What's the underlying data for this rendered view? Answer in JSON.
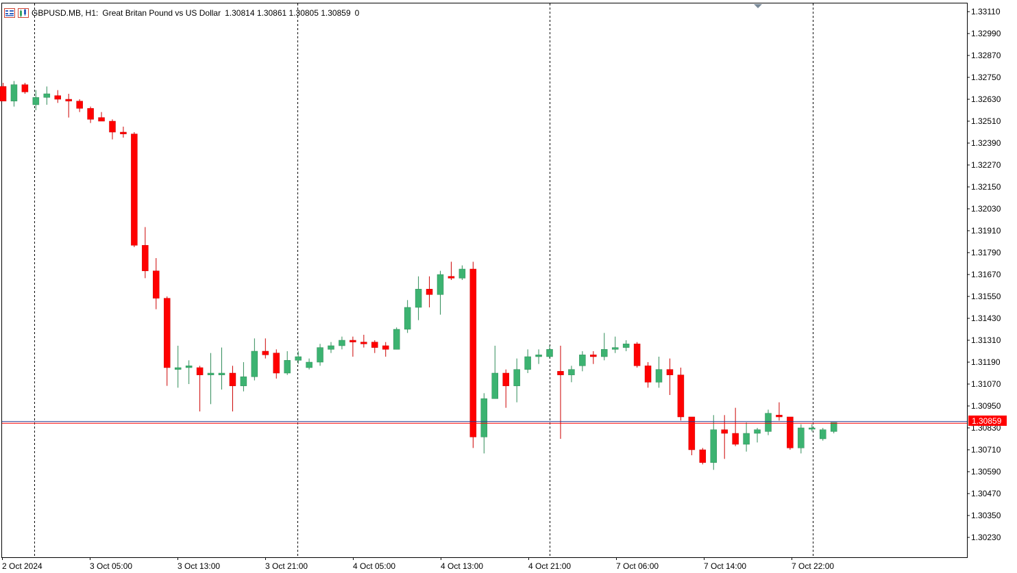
{
  "header": {
    "symbol": "GBPUSD.MB, H1:",
    "description": "Great Britan Pound vs US Dollar",
    "ohlc": "1.30814 1.30861 1.30805 1.30859",
    "extra": "0",
    "icons": [
      "chart-list-icon",
      "chart-properties-icon"
    ]
  },
  "colors": {
    "bull": "#3cb371",
    "bear": "#ff0000",
    "wick_bull": "#2e8b57",
    "wick_bear": "#cc0000",
    "bid_line": "#1f3a93",
    "ask_line": "#ff0000",
    "price_label_bg": "#ff0000",
    "grid_separator": "#000000"
  },
  "current_price_label": "1.30859",
  "chart_data": {
    "type": "candlestick",
    "symbol": "GBPUSD.MB",
    "timeframe": "H1",
    "y_ticks": [
      "1.33110",
      "1.32990",
      "1.32870",
      "1.32750",
      "1.32630",
      "1.32510",
      "1.32390",
      "1.32270",
      "1.32150",
      "1.32030",
      "1.31910",
      "1.31790",
      "1.31670",
      "1.31550",
      "1.31430",
      "1.31310",
      "1.31190",
      "1.31070",
      "1.30950",
      "1.30830",
      "1.30710",
      "1.30590",
      "1.30470",
      "1.30350",
      "1.30230"
    ],
    "x_ticks": [
      "2 Oct 2024",
      "3 Oct 05:00",
      "3 Oct 13:00",
      "3 Oct 21:00",
      "4 Oct 05:00",
      "4 Oct 13:00",
      "4 Oct 21:00",
      "7 Oct 06:00",
      "7 Oct 14:00",
      "7 Oct 22:00"
    ],
    "day_separators": [
      "3 Oct 2024",
      "4 Oct 2024",
      "7 Oct 2024",
      "8 Oct 2024"
    ],
    "ylim": [
      1.3018,
      1.3313
    ],
    "current_price": 1.30859,
    "candles": [
      {
        "o": 1.327,
        "h": 1.3272,
        "l": 1.3262,
        "c": 1.3262
      },
      {
        "o": 1.3262,
        "h": 1.3273,
        "l": 1.3259,
        "c": 1.3271
      },
      {
        "o": 1.3271,
        "h": 1.3272,
        "l": 1.3266,
        "c": 1.3267
      },
      {
        "o": 1.326,
        "h": 1.3268,
        "l": 1.3257,
        "c": 1.3264
      },
      {
        "o": 1.3264,
        "h": 1.327,
        "l": 1.326,
        "c": 1.3266
      },
      {
        "o": 1.3265,
        "h": 1.3268,
        "l": 1.3261,
        "c": 1.3263
      },
      {
        "o": 1.3263,
        "h": 1.3266,
        "l": 1.3253,
        "c": 1.3262
      },
      {
        "o": 1.3262,
        "h": 1.3263,
        "l": 1.3256,
        "c": 1.3258
      },
      {
        "o": 1.3258,
        "h": 1.3259,
        "l": 1.325,
        "c": 1.3252
      },
      {
        "o": 1.3253,
        "h": 1.3256,
        "l": 1.3251,
        "c": 1.3251
      },
      {
        "o": 1.3251,
        "h": 1.3252,
        "l": 1.3241,
        "c": 1.3245
      },
      {
        "o": 1.3245,
        "h": 1.3248,
        "l": 1.3242,
        "c": 1.3244
      },
      {
        "o": 1.3244,
        "h": 1.3245,
        "l": 1.3182,
        "c": 1.3183
      },
      {
        "o": 1.3183,
        "h": 1.3193,
        "l": 1.3165,
        "c": 1.3169
      },
      {
        "o": 1.3169,
        "h": 1.3176,
        "l": 1.3148,
        "c": 1.3154
      },
      {
        "o": 1.3154,
        "h": 1.3155,
        "l": 1.3106,
        "c": 1.3116
      },
      {
        "o": 1.3115,
        "h": 1.3128,
        "l": 1.3105,
        "c": 1.3116
      },
      {
        "o": 1.3116,
        "h": 1.312,
        "l": 1.3107,
        "c": 1.3117
      },
      {
        "o": 1.3116,
        "h": 1.3117,
        "l": 1.3092,
        "c": 1.3112
      },
      {
        "o": 1.3112,
        "h": 1.3124,
        "l": 1.3096,
        "c": 1.3113
      },
      {
        "o": 1.3112,
        "h": 1.3127,
        "l": 1.3104,
        "c": 1.3113
      },
      {
        "o": 1.3113,
        "h": 1.3117,
        "l": 1.3092,
        "c": 1.3106
      },
      {
        "o": 1.3106,
        "h": 1.3119,
        "l": 1.3103,
        "c": 1.3111
      },
      {
        "o": 1.3111,
        "h": 1.3132,
        "l": 1.3109,
        "c": 1.3125
      },
      {
        "o": 1.3125,
        "h": 1.3132,
        "l": 1.3121,
        "c": 1.3123
      },
      {
        "o": 1.3124,
        "h": 1.3126,
        "l": 1.311,
        "c": 1.3113
      },
      {
        "o": 1.3113,
        "h": 1.3125,
        "l": 1.3112,
        "c": 1.312
      },
      {
        "o": 1.312,
        "h": 1.3125,
        "l": 1.3118,
        "c": 1.3122
      },
      {
        "o": 1.3116,
        "h": 1.3121,
        "l": 1.3115,
        "c": 1.3119
      },
      {
        "o": 1.3119,
        "h": 1.3129,
        "l": 1.3117,
        "c": 1.3127
      },
      {
        "o": 1.3126,
        "h": 1.313,
        "l": 1.3124,
        "c": 1.3128
      },
      {
        "o": 1.3128,
        "h": 1.3133,
        "l": 1.3126,
        "c": 1.3131
      },
      {
        "o": 1.3131,
        "h": 1.3133,
        "l": 1.3122,
        "c": 1.313
      },
      {
        "o": 1.313,
        "h": 1.3134,
        "l": 1.3127,
        "c": 1.3129
      },
      {
        "o": 1.313,
        "h": 1.3131,
        "l": 1.3124,
        "c": 1.3127
      },
      {
        "o": 1.3128,
        "h": 1.313,
        "l": 1.3122,
        "c": 1.3126
      },
      {
        "o": 1.3126,
        "h": 1.3138,
        "l": 1.3126,
        "c": 1.3137
      },
      {
        "o": 1.3137,
        "h": 1.3153,
        "l": 1.3135,
        "c": 1.3149
      },
      {
        "o": 1.3149,
        "h": 1.3166,
        "l": 1.3142,
        "c": 1.3159
      },
      {
        "o": 1.3159,
        "h": 1.3166,
        "l": 1.3149,
        "c": 1.3156
      },
      {
        "o": 1.3156,
        "h": 1.3169,
        "l": 1.3145,
        "c": 1.3167
      },
      {
        "o": 1.3166,
        "h": 1.3174,
        "l": 1.3164,
        "c": 1.3165
      },
      {
        "o": 1.3165,
        "h": 1.3172,
        "l": 1.3164,
        "c": 1.317
      },
      {
        "o": 1.317,
        "h": 1.3174,
        "l": 1.3072,
        "c": 1.3078
      },
      {
        "o": 1.3078,
        "h": 1.3102,
        "l": 1.3069,
        "c": 1.3099
      },
      {
        "o": 1.3099,
        "h": 1.3128,
        "l": 1.3099,
        "c": 1.3113
      },
      {
        "o": 1.3113,
        "h": 1.3115,
        "l": 1.3094,
        "c": 1.3106
      },
      {
        "o": 1.3106,
        "h": 1.3121,
        "l": 1.3097,
        "c": 1.3115
      },
      {
        "o": 1.3115,
        "h": 1.3126,
        "l": 1.3113,
        "c": 1.3122
      },
      {
        "o": 1.3122,
        "h": 1.3126,
        "l": 1.3118,
        "c": 1.3123
      },
      {
        "o": 1.3122,
        "h": 1.3128,
        "l": 1.3121,
        "c": 1.3126
      },
      {
        "o": 1.3114,
        "h": 1.3128,
        "l": 1.3077,
        "c": 1.3112
      },
      {
        "o": 1.3112,
        "h": 1.3117,
        "l": 1.3108,
        "c": 1.3115
      },
      {
        "o": 1.3117,
        "h": 1.3125,
        "l": 1.3114,
        "c": 1.3123
      },
      {
        "o": 1.3123,
        "h": 1.3125,
        "l": 1.3118,
        "c": 1.3122
      },
      {
        "o": 1.3122,
        "h": 1.3135,
        "l": 1.312,
        "c": 1.3126
      },
      {
        "o": 1.3126,
        "h": 1.3133,
        "l": 1.3124,
        "c": 1.3127
      },
      {
        "o": 1.3127,
        "h": 1.3131,
        "l": 1.3125,
        "c": 1.3129
      },
      {
        "o": 1.3129,
        "h": 1.313,
        "l": 1.3116,
        "c": 1.3117
      },
      {
        "o": 1.3117,
        "h": 1.3119,
        "l": 1.3105,
        "c": 1.3108
      },
      {
        "o": 1.3108,
        "h": 1.3122,
        "l": 1.3105,
        "c": 1.3115
      },
      {
        "o": 1.3115,
        "h": 1.3121,
        "l": 1.3101,
        "c": 1.3112
      },
      {
        "o": 1.3112,
        "h": 1.3116,
        "l": 1.3087,
        "c": 1.3089
      },
      {
        "o": 1.3089,
        "h": 1.3089,
        "l": 1.3068,
        "c": 1.3071
      },
      {
        "o": 1.3071,
        "h": 1.3072,
        "l": 1.3063,
        "c": 1.3064
      },
      {
        "o": 1.3064,
        "h": 1.309,
        "l": 1.306,
        "c": 1.3082
      },
      {
        "o": 1.3082,
        "h": 1.309,
        "l": 1.3066,
        "c": 1.308
      },
      {
        "o": 1.308,
        "h": 1.3094,
        "l": 1.3073,
        "c": 1.3074
      },
      {
        "o": 1.3074,
        "h": 1.3086,
        "l": 1.307,
        "c": 1.308
      },
      {
        "o": 1.308,
        "h": 1.3083,
        "l": 1.3075,
        "c": 1.3082
      },
      {
        "o": 1.3081,
        "h": 1.3093,
        "l": 1.3079,
        "c": 1.3091
      },
      {
        "o": 1.309,
        "h": 1.3097,
        "l": 1.3087,
        "c": 1.3089
      },
      {
        "o": 1.3089,
        "h": 1.3089,
        "l": 1.3071,
        "c": 1.3072
      },
      {
        "o": 1.3072,
        "h": 1.3085,
        "l": 1.3069,
        "c": 1.3083
      },
      {
        "o": 1.3083,
        "h": 1.3085,
        "l": 1.3081,
        "c": 1.3083
      },
      {
        "o": 1.3077,
        "h": 1.3083,
        "l": 1.3076,
        "c": 1.3082
      },
      {
        "o": 1.3081,
        "h": 1.3086,
        "l": 1.308,
        "c": 1.3086
      }
    ]
  }
}
